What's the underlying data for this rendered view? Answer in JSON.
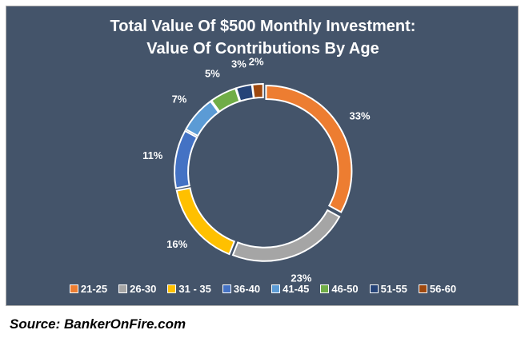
{
  "chart_data": {
    "type": "pie",
    "variant": "doughnut",
    "title": "Total Value Of $500 Monthly Investment:",
    "subtitle": "Value Of Contributions By Age",
    "categories": [
      "21-25",
      "26-30",
      "31 - 35",
      "36-40",
      "41-45",
      "46-50",
      "51-55",
      "56-60"
    ],
    "values": [
      33,
      23,
      16,
      11,
      7,
      5,
      3,
      2
    ],
    "labels": [
      "33%",
      "23%",
      "16%",
      "11%",
      "7%",
      "5%",
      "3%",
      "2%"
    ],
    "colors": [
      "#ed7d31",
      "#a5a5a5",
      "#ffc000",
      "#4472c4",
      "#5b9bd5",
      "#70ad47",
      "#264478",
      "#9e480e"
    ],
    "legend_position": "bottom",
    "background": "#44546a"
  },
  "source": "Source: BankerOnFire.com"
}
